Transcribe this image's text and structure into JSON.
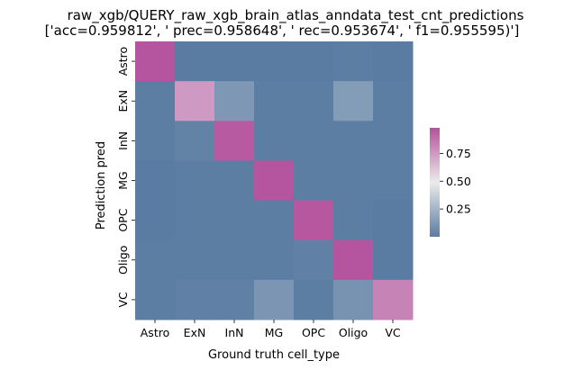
{
  "chart_data": {
    "type": "heatmap",
    "title_line1": "raw_xgb/QUERY_raw_xgb_brain_atlas_anndata_test_cnt_predictions",
    "title_line2": "['acc=0.959812', '  prec=0.958648', ' rec=0.953674', ' f1=0.955595)']",
    "xlabel": "Ground truth cell_type",
    "ylabel": "Prediction pred",
    "x_categories": [
      "Astro",
      "ExN",
      "InN",
      "MG",
      "OPC",
      "Oligo",
      "VC"
    ],
    "y_categories": [
      "Astro",
      "ExN",
      "InN",
      "MG",
      "OPC",
      "Oligo",
      "VC"
    ],
    "values": [
      [
        0.97,
        0.0,
        0.0,
        0.0,
        0.0,
        0.01,
        0.0
      ],
      [
        0.01,
        0.75,
        0.12,
        0.01,
        0.01,
        0.14,
        0.01
      ],
      [
        0.01,
        0.03,
        0.95,
        0.01,
        0.01,
        0.01,
        0.01
      ],
      [
        0.0,
        0.01,
        0.01,
        0.97,
        0.01,
        0.01,
        0.01
      ],
      [
        0.0,
        0.01,
        0.01,
        0.01,
        0.96,
        0.01,
        0.0
      ],
      [
        0.01,
        0.01,
        0.01,
        0.01,
        0.02,
        0.97,
        0.0
      ],
      [
        0.01,
        0.02,
        0.02,
        0.11,
        0.01,
        0.1,
        0.82
      ]
    ],
    "colorbar": {
      "ticks": [
        0.25,
        0.5,
        0.75
      ],
      "tick_labels": [
        "0.25",
        "0.50",
        "0.75"
      ],
      "range": [
        0.0,
        0.98
      ],
      "colors": [
        "#5a7ca2",
        "#ebebeb",
        "#b4519d"
      ]
    }
  }
}
